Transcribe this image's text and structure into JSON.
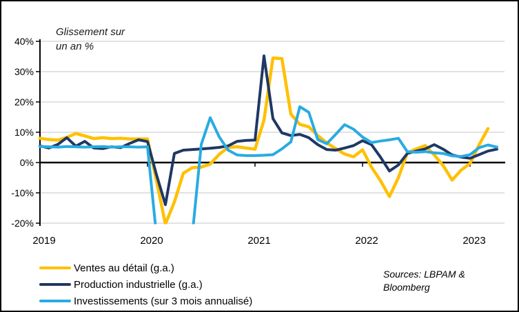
{
  "chart_data": {
    "type": "line",
    "annotation": {
      "line1": "Glissement sur",
      "line2": "un an %"
    },
    "x_unit": "month",
    "x_start": "2019-01",
    "x_end": "2023-04",
    "x_tick_labels": [
      "2019",
      "2020",
      "2021",
      "2022",
      "2023"
    ],
    "ylim": [
      -20,
      40
    ],
    "grid": true,
    "grid_color": "#D9D9D9",
    "zero_line_color": "#000000",
    "legend_position": "bottom-left",
    "y_ticks": [
      {
        "value": 40,
        "label": "40%"
      },
      {
        "value": 30,
        "label": "30%"
      },
      {
        "value": 20,
        "label": "20%"
      },
      {
        "value": 10,
        "label": "10%"
      },
      {
        "value": 0,
        "label": "0%"
      },
      {
        "value": -10,
        "label": "-10%"
      },
      {
        "value": -20,
        "label": "-20%"
      }
    ],
    "series": [
      {
        "name": "Ventes au détail (g.a.)",
        "color": "#FFC000",
        "values": [
          8.0,
          7.6,
          7.4,
          8.3,
          9.6,
          8.8,
          7.9,
          8.2,
          7.9,
          8.0,
          7.8,
          7.8,
          7.8,
          -6.0,
          -20.3,
          -13.0,
          -3.5,
          -1.7,
          -1.5,
          -0.5,
          2.7,
          5.0,
          5.2,
          4.8,
          4.4,
          14.0,
          34.5,
          34.3,
          16.0,
          12.6,
          11.8,
          8.9,
          6.5,
          4.6,
          2.8,
          1.9,
          4.2,
          -1.5,
          -6.0,
          -11.2,
          -5.0,
          3.2,
          4.5,
          5.6,
          2.5,
          -1.0,
          -5.8,
          -2.5,
          -0.3,
          5.8,
          11.2,
          null
        ]
      },
      {
        "name": "Production industrielle (g.a.)",
        "color": "#1F3864",
        "values": [
          5.5,
          4.8,
          6.0,
          8.2,
          5.4,
          7.0,
          4.8,
          4.6,
          5.2,
          4.9,
          6.3,
          7.5,
          6.9,
          -4.0,
          -13.9,
          3.0,
          4.1,
          4.3,
          4.5,
          4.7,
          5.0,
          5.5,
          7.0,
          7.3,
          7.4,
          35.2,
          14.5,
          9.8,
          8.9,
          9.3,
          8.2,
          5.9,
          4.3,
          4.1,
          4.8,
          5.6,
          7.2,
          5.9,
          1.8,
          -2.8,
          -0.8,
          3.0,
          3.8,
          4.5,
          5.9,
          4.4,
          2.5,
          1.8,
          1.4,
          2.6,
          3.8,
          4.4
        ]
      },
      {
        "name": "Investissements (sur 3 mois annualisé)",
        "color": "#29ABE2",
        "values": [
          5.3,
          5.2,
          5.1,
          5.3,
          5.2,
          5.1,
          5.2,
          5.3,
          5.1,
          5.2,
          5.2,
          5.1,
          5.2,
          -24,
          -30,
          -32,
          -28,
          -24,
          6.0,
          14.8,
          8.5,
          4.1,
          2.5,
          2.3,
          2.3,
          2.4,
          2.6,
          4.5,
          6.8,
          18.4,
          16.6,
          7.6,
          6.2,
          9.3,
          12.5,
          11.0,
          8.4,
          6.6,
          7.1,
          7.5,
          8.0,
          3.6,
          3.4,
          3.6,
          3.2,
          3.0,
          2.2,
          2.0,
          2.6,
          4.9,
          5.8,
          5.1
        ]
      }
    ],
    "sources": {
      "line1": "Sources: LBPAM &",
      "line2": "Bloomberg"
    }
  }
}
